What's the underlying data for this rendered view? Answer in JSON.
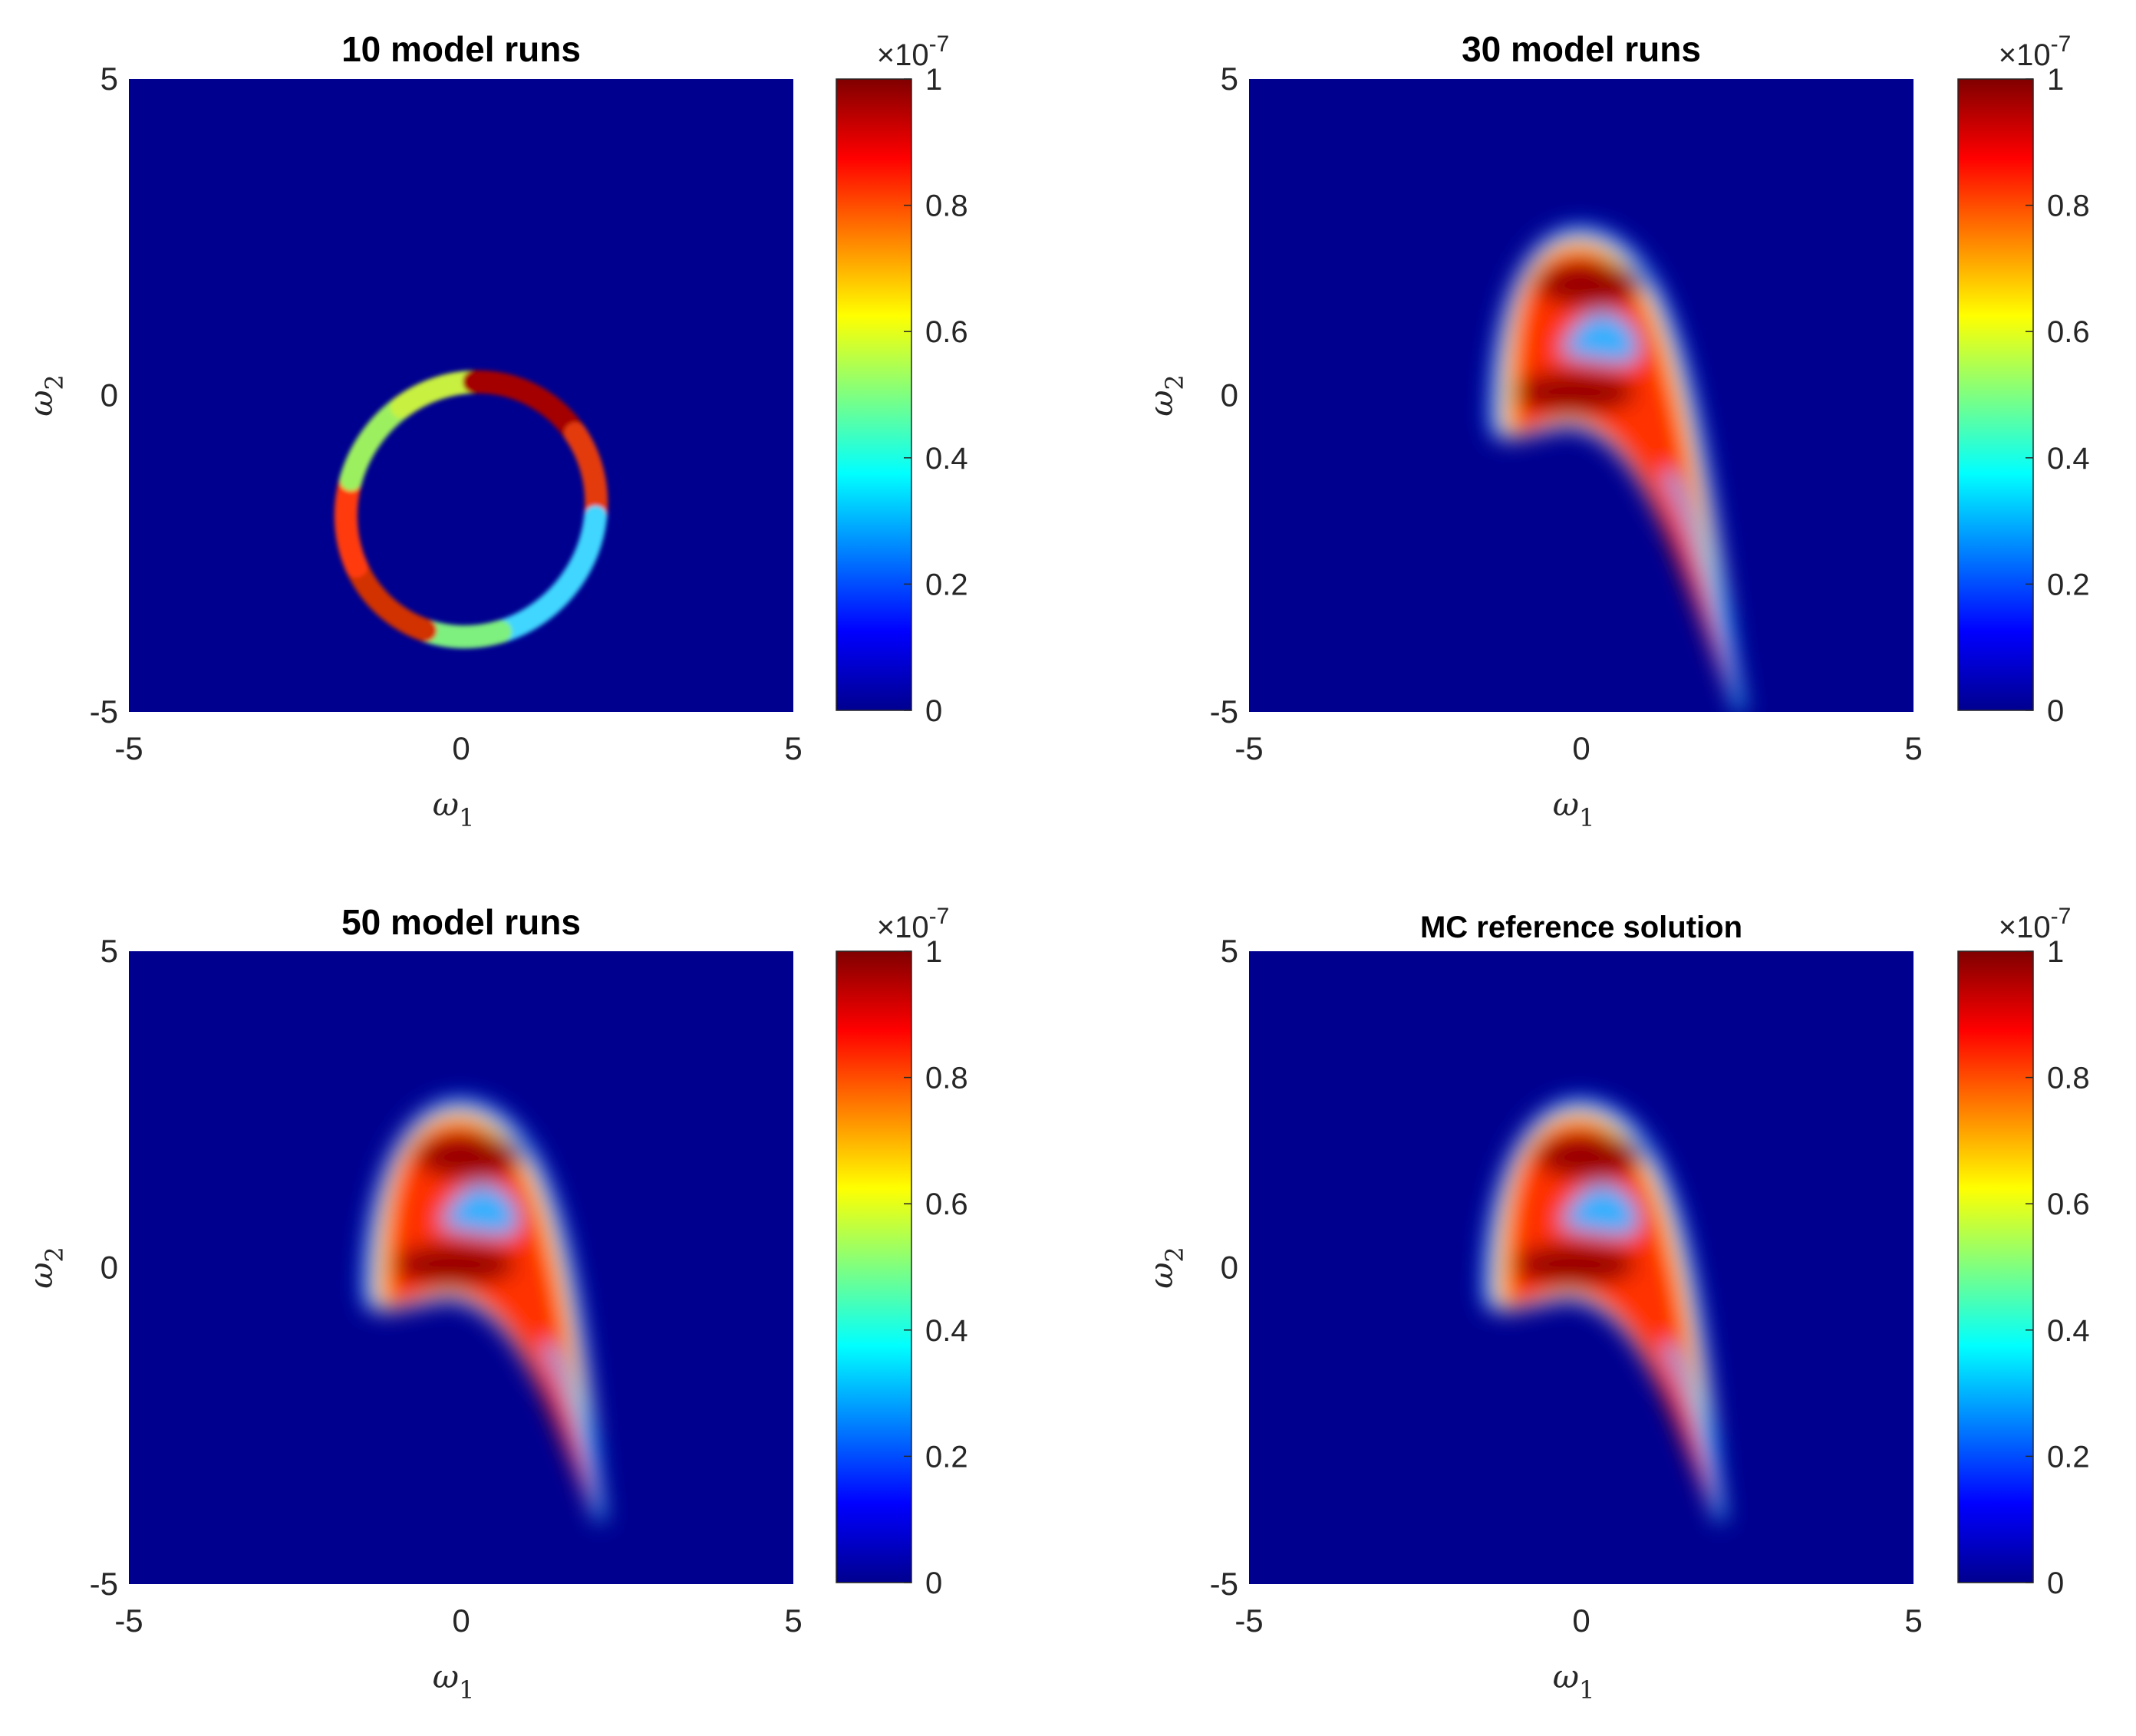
{
  "chart_data": [
    {
      "type": "heatmap",
      "title": "10 model runs",
      "xlabel": "ω1",
      "ylabel": "ω2",
      "xlim": [
        -5,
        5
      ],
      "ylim": [
        -5,
        5
      ],
      "xticks": [
        "-5",
        "0",
        "5"
      ],
      "yticks": [
        "-5",
        "0",
        "5"
      ],
      "colorbar": {
        "min": 0,
        "max": 1,
        "exponent_label": "×10",
        "exponent": "-7",
        "ticks": [
          "0",
          "0.2",
          "0.4",
          "0.6",
          "0.8",
          "1"
        ],
        "colormap": "jet"
      },
      "shape": "ring",
      "ring": {
        "center": [
          0.15,
          -1.8
        ],
        "radius_x": 1.85,
        "radius_y": 2.05,
        "rotation_deg": 35
      }
    },
    {
      "type": "heatmap",
      "title": "30 model runs",
      "xlabel": "ω1",
      "ylabel": "ω2",
      "xlim": [
        -5,
        5
      ],
      "ylim": [
        -5,
        5
      ],
      "xticks": [
        "-5",
        "0",
        "5"
      ],
      "yticks": [
        "-5",
        "0",
        "5"
      ],
      "colorbar": {
        "min": 0,
        "max": 1,
        "exponent_label": "×10",
        "exponent": "-7",
        "ticks": [
          "0",
          "0.2",
          "0.4",
          "0.6",
          "0.8",
          "1"
        ],
        "colormap": "jet"
      },
      "shape": "banana",
      "banana": {
        "peak": [
          0,
          2.0
        ],
        "tip": [
          2.4,
          -5.0
        ],
        "tail_extent": -1.2
      }
    },
    {
      "type": "heatmap",
      "title": "50 model runs",
      "xlabel": "ω1",
      "ylabel": "ω2",
      "xlim": [
        -5,
        5
      ],
      "ylim": [
        -5,
        5
      ],
      "xticks": [
        "-5",
        "0",
        "5"
      ],
      "yticks": [
        "-5",
        "0",
        "5"
      ],
      "colorbar": {
        "min": 0,
        "max": 1,
        "exponent_label": "×10",
        "exponent": "-7",
        "ticks": [
          "0",
          "0.2",
          "0.4",
          "0.6",
          "0.8",
          "1"
        ],
        "colormap": "jet"
      },
      "shape": "banana",
      "banana": {
        "peak": [
          0,
          2.0
        ],
        "tip": [
          2.1,
          -4.0
        ],
        "tail_extent": -1.3
      }
    },
    {
      "type": "heatmap",
      "title": "MC reference solution",
      "xlabel": "ω1",
      "ylabel": "ω2",
      "xlim": [
        -5,
        5
      ],
      "ylim": [
        -5,
        5
      ],
      "xticks": [
        "-5",
        "0",
        "5"
      ],
      "yticks": [
        "-5",
        "0",
        "5"
      ],
      "colorbar": {
        "min": 0,
        "max": 1,
        "exponent_label": "×10",
        "exponent": "-7",
        "ticks": [
          "0",
          "0.2",
          "0.4",
          "0.6",
          "0.8",
          "1"
        ],
        "colormap": "jet"
      },
      "shape": "banana",
      "banana": {
        "peak": [
          0,
          2.0
        ],
        "tip": [
          2.1,
          -4.0
        ],
        "tail_extent": -1.3
      }
    }
  ],
  "colors": {
    "background_blue": "#00008f",
    "max_red": "#800000"
  }
}
